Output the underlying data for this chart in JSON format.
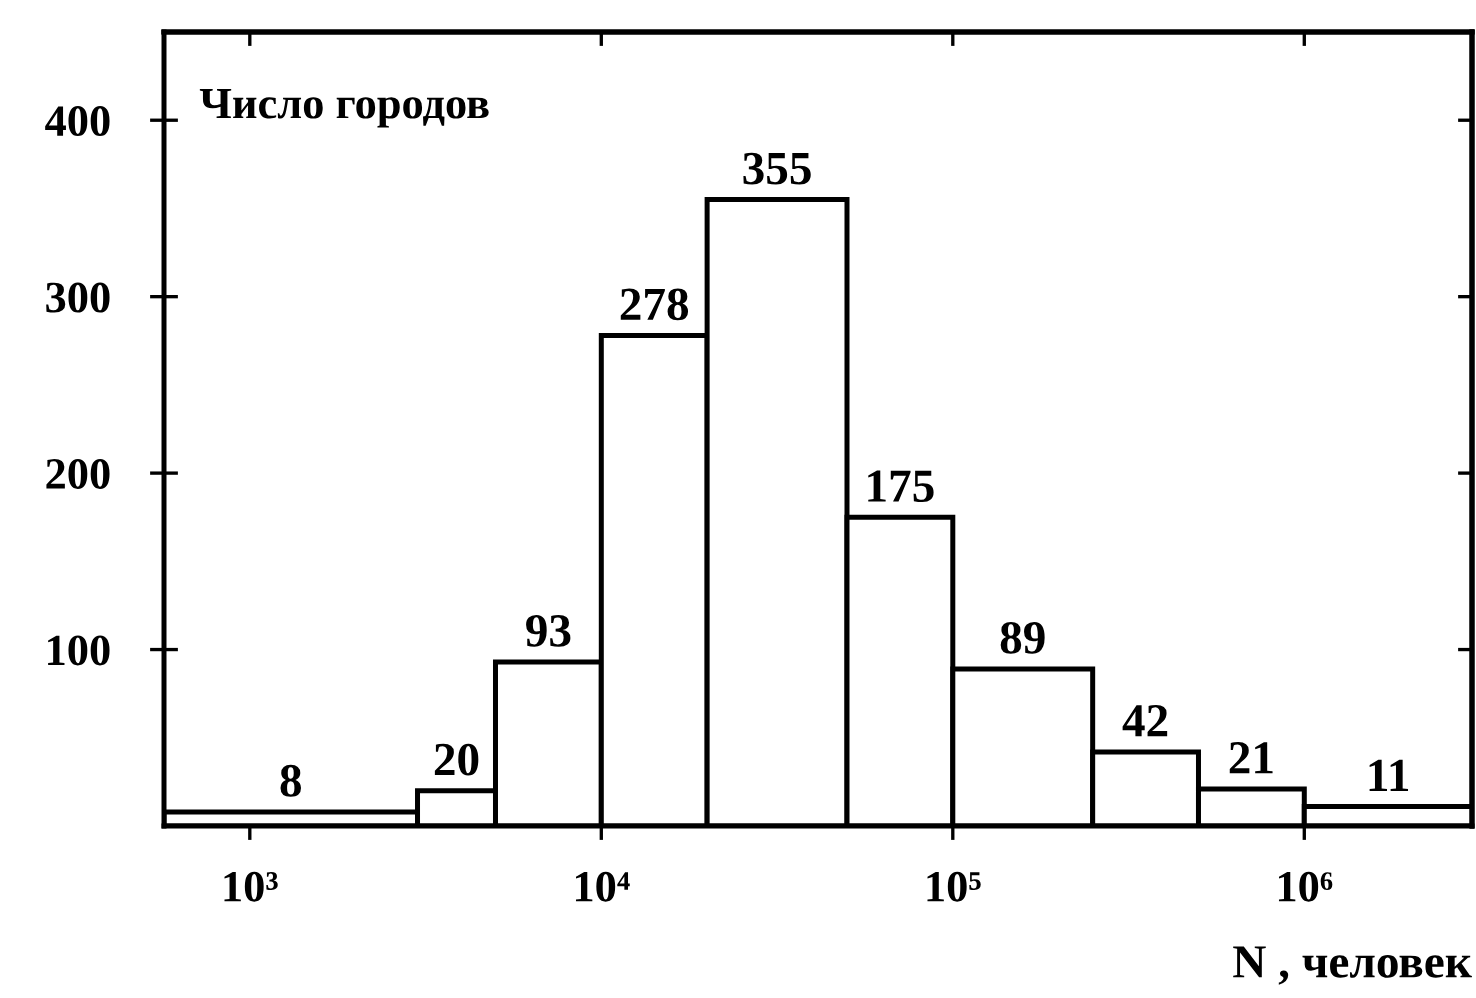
{
  "chart_data": {
    "type": "histogram",
    "ylabel": "Число городов",
    "xlabel": "N , человек",
    "bins": [
      570,
      3000,
      5000,
      10000,
      20000,
      50000,
      100000,
      250000,
      500000,
      1000000,
      3000000
    ],
    "values": [
      8,
      20,
      93,
      278,
      355,
      175,
      89,
      42,
      21,
      11
    ],
    "color": "#ffffff",
    "log": "x",
    "xlim": [
      570,
      3000000
    ],
    "xticks": [
      {
        "value": 1000,
        "label": "10³"
      },
      {
        "value": 10000,
        "label": "10⁴"
      },
      {
        "value": 100000,
        "label": "10⁵"
      },
      {
        "value": 1000000,
        "label": "10⁶"
      }
    ],
    "ylim": [
      0,
      450
    ],
    "yticks": [
      100,
      200,
      300,
      400
    ],
    "data_labels": true,
    "grid": false
  }
}
